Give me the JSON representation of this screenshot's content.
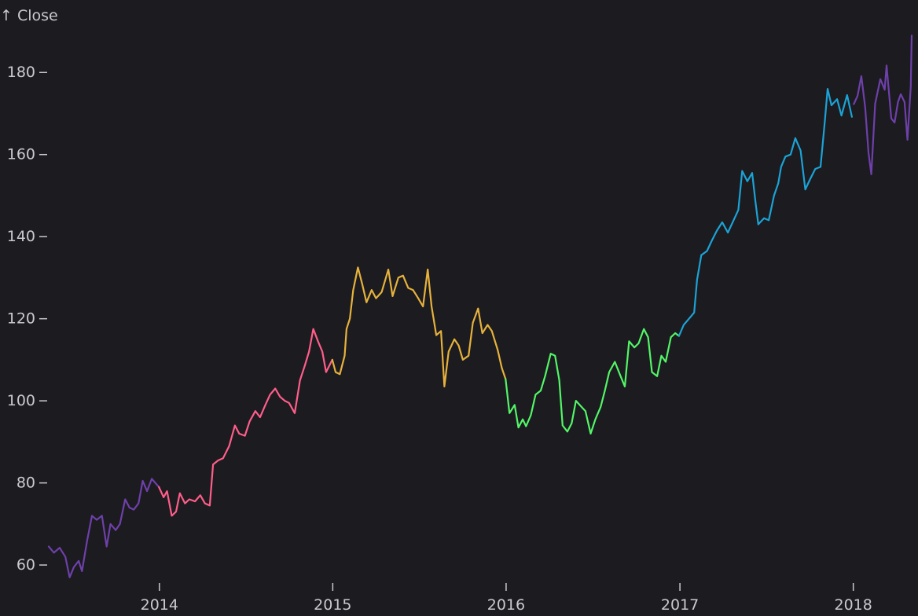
{
  "chart_data": {
    "type": "line",
    "y_axis_label": "↑ Close",
    "ylim": [
      56,
      190
    ],
    "xlim": [
      "2013-05-13",
      "2018-05-04"
    ],
    "y_ticks": [
      60,
      80,
      100,
      120,
      140,
      160,
      180
    ],
    "y_tick_labels": [
      "60",
      "80",
      "100",
      "120",
      "140",
      "160",
      "180"
    ],
    "x_ticks": [
      "2014-01-01",
      "2015-01-01",
      "2016-01-01",
      "2017-01-01",
      "2018-01-01"
    ],
    "x_tick_labels": [
      "2014",
      "2015",
      "2016",
      "2017",
      "2018"
    ],
    "grid": false,
    "background": "#1c1b20",
    "series": [
      {
        "color": "#6e40aa",
        "points": [
          [
            "2013-05-13",
            64.5
          ],
          [
            "2013-05-24",
            63.0
          ],
          [
            "2013-06-05",
            64.2
          ],
          [
            "2013-06-17",
            62.0
          ],
          [
            "2013-06-26",
            57.0
          ],
          [
            "2013-07-05",
            59.5
          ],
          [
            "2013-07-15",
            61.0
          ],
          [
            "2013-07-22",
            58.5
          ],
          [
            "2013-08-02",
            66.0
          ],
          [
            "2013-08-12",
            72.0
          ],
          [
            "2013-08-22",
            71.0
          ],
          [
            "2013-09-02",
            72.0
          ],
          [
            "2013-09-12",
            64.5
          ],
          [
            "2013-09-20",
            70.0
          ],
          [
            "2013-10-01",
            68.5
          ],
          [
            "2013-10-10",
            70.0
          ],
          [
            "2013-10-21",
            76.0
          ],
          [
            "2013-10-30",
            74.0
          ],
          [
            "2013-11-08",
            73.5
          ],
          [
            "2013-11-18",
            75.0
          ],
          [
            "2013-11-27",
            80.5
          ],
          [
            "2013-12-06",
            78.0
          ],
          [
            "2013-12-16",
            81.0
          ],
          [
            "2013-12-31",
            79.0
          ]
        ]
      },
      {
        "color": "#ff5e8a",
        "points": [
          [
            "2013-12-31",
            79.0
          ],
          [
            "2014-01-10",
            76.5
          ],
          [
            "2014-01-17",
            78.0
          ],
          [
            "2014-01-27",
            72.0
          ],
          [
            "2014-02-05",
            73.0
          ],
          [
            "2014-02-13",
            77.5
          ],
          [
            "2014-02-24",
            75.0
          ],
          [
            "2014-03-05",
            76.0
          ],
          [
            "2014-03-17",
            75.5
          ],
          [
            "2014-03-28",
            77.0
          ],
          [
            "2014-04-07",
            75.0
          ],
          [
            "2014-04-17",
            74.5
          ],
          [
            "2014-04-24",
            84.5
          ],
          [
            "2014-05-05",
            85.5
          ],
          [
            "2014-05-15",
            86.0
          ],
          [
            "2014-05-28",
            89.0
          ],
          [
            "2014-06-09",
            94.0
          ],
          [
            "2014-06-18",
            92.0
          ],
          [
            "2014-06-30",
            91.5
          ],
          [
            "2014-07-10",
            95.0
          ],
          [
            "2014-07-22",
            97.5
          ],
          [
            "2014-08-01",
            96.0
          ],
          [
            "2014-08-12",
            99.0
          ],
          [
            "2014-08-22",
            101.5
          ],
          [
            "2014-09-02",
            103.0
          ],
          [
            "2014-09-12",
            101.0
          ],
          [
            "2014-09-22",
            100.0
          ],
          [
            "2014-10-01",
            99.5
          ],
          [
            "2014-10-13",
            97.0
          ],
          [
            "2014-10-24",
            105.0
          ],
          [
            "2014-11-03",
            108.5
          ],
          [
            "2014-11-12",
            112.0
          ],
          [
            "2014-11-21",
            117.5
          ],
          [
            "2014-12-01",
            114.5
          ],
          [
            "2014-12-10",
            112.0
          ],
          [
            "2014-12-18",
            107.0
          ],
          [
            "2014-12-31",
            110.0
          ]
        ]
      },
      {
        "color": "#e6b23c",
        "points": [
          [
            "2014-12-31",
            110.0
          ],
          [
            "2015-01-07",
            107.0
          ],
          [
            "2015-01-16",
            106.5
          ],
          [
            "2015-01-26",
            111.0
          ],
          [
            "2015-01-30",
            117.5
          ],
          [
            "2015-02-06",
            120.0
          ],
          [
            "2015-02-13",
            127.0
          ],
          [
            "2015-02-23",
            132.5
          ],
          [
            "2015-03-04",
            128.5
          ],
          [
            "2015-03-13",
            124.0
          ],
          [
            "2015-03-24",
            127.0
          ],
          [
            "2015-04-02",
            125.0
          ],
          [
            "2015-04-14",
            126.5
          ],
          [
            "2015-04-28",
            132.0
          ],
          [
            "2015-05-07",
            125.5
          ],
          [
            "2015-05-19",
            130.0
          ],
          [
            "2015-05-29",
            130.5
          ],
          [
            "2015-06-09",
            127.5
          ],
          [
            "2015-06-19",
            127.0
          ],
          [
            "2015-06-30",
            125.0
          ],
          [
            "2015-07-10",
            123.0
          ],
          [
            "2015-07-20",
            132.0
          ],
          [
            "2015-07-28",
            123.0
          ],
          [
            "2015-08-07",
            116.0
          ],
          [
            "2015-08-17",
            117.0
          ],
          [
            "2015-08-24",
            103.5
          ],
          [
            "2015-09-02",
            112.0
          ],
          [
            "2015-09-14",
            115.0
          ],
          [
            "2015-09-23",
            113.5
          ],
          [
            "2015-10-02",
            110.0
          ],
          [
            "2015-10-14",
            111.0
          ],
          [
            "2015-10-23",
            119.0
          ],
          [
            "2015-11-03",
            122.5
          ],
          [
            "2015-11-12",
            116.5
          ],
          [
            "2015-11-23",
            118.5
          ],
          [
            "2015-12-02",
            117.0
          ],
          [
            "2015-12-14",
            112.5
          ],
          [
            "2015-12-23",
            108.0
          ],
          [
            "2015-12-31",
            105.3
          ]
        ]
      },
      {
        "color": "#52f667",
        "points": [
          [
            "2015-12-31",
            105.3
          ],
          [
            "2016-01-08",
            97.0
          ],
          [
            "2016-01-19",
            99.0
          ],
          [
            "2016-01-27",
            93.5
          ],
          [
            "2016-02-05",
            95.5
          ],
          [
            "2016-02-12",
            93.8
          ],
          [
            "2016-02-22",
            96.5
          ],
          [
            "2016-03-03",
            101.5
          ],
          [
            "2016-03-14",
            102.5
          ],
          [
            "2016-03-23",
            106.0
          ],
          [
            "2016-04-04",
            111.5
          ],
          [
            "2016-04-13",
            111.0
          ],
          [
            "2016-04-22",
            105.0
          ],
          [
            "2016-04-29",
            94.0
          ],
          [
            "2016-05-09",
            92.5
          ],
          [
            "2016-05-18",
            94.5
          ],
          [
            "2016-05-27",
            100.0
          ],
          [
            "2016-06-08",
            98.5
          ],
          [
            "2016-06-16",
            97.5
          ],
          [
            "2016-06-27",
            92.0
          ],
          [
            "2016-07-07",
            95.5
          ],
          [
            "2016-07-18",
            98.5
          ],
          [
            "2016-07-27",
            102.5
          ],
          [
            "2016-08-05",
            107.0
          ],
          [
            "2016-08-17",
            109.5
          ],
          [
            "2016-08-29",
            106.0
          ],
          [
            "2016-09-07",
            103.5
          ],
          [
            "2016-09-16",
            114.5
          ],
          [
            "2016-09-27",
            113.0
          ],
          [
            "2016-10-06",
            114.0
          ],
          [
            "2016-10-17",
            117.5
          ],
          [
            "2016-10-26",
            115.5
          ],
          [
            "2016-11-03",
            107.0
          ],
          [
            "2016-11-14",
            106.0
          ],
          [
            "2016-11-23",
            111.0
          ],
          [
            "2016-12-02",
            109.5
          ],
          [
            "2016-12-13",
            115.5
          ],
          [
            "2016-12-22",
            116.5
          ],
          [
            "2016-12-30",
            115.8
          ]
        ]
      },
      {
        "color": "#1ba3d6",
        "points": [
          [
            "2016-12-30",
            115.8
          ],
          [
            "2017-01-09",
            118.5
          ],
          [
            "2017-01-20",
            120.0
          ],
          [
            "2017-01-31",
            121.5
          ],
          [
            "2017-02-06",
            129.5
          ],
          [
            "2017-02-15",
            135.5
          ],
          [
            "2017-02-27",
            136.5
          ],
          [
            "2017-03-09",
            139.0
          ],
          [
            "2017-03-20",
            141.5
          ],
          [
            "2017-03-31",
            143.5
          ],
          [
            "2017-04-12",
            141.0
          ],
          [
            "2017-04-24",
            144.0
          ],
          [
            "2017-05-04",
            146.5
          ],
          [
            "2017-05-12",
            156.0
          ],
          [
            "2017-05-23",
            153.5
          ],
          [
            "2017-06-02",
            155.5
          ],
          [
            "2017-06-09",
            148.5
          ],
          [
            "2017-06-15",
            143.0
          ],
          [
            "2017-06-27",
            144.5
          ],
          [
            "2017-07-07",
            144.0
          ],
          [
            "2017-07-18",
            150.0
          ],
          [
            "2017-07-27",
            153.0
          ],
          [
            "2017-08-02",
            157.0
          ],
          [
            "2017-08-11",
            159.5
          ],
          [
            "2017-08-22",
            160.0
          ],
          [
            "2017-09-01",
            164.0
          ],
          [
            "2017-09-12",
            161.0
          ],
          [
            "2017-09-22",
            151.5
          ],
          [
            "2017-10-02",
            154.0
          ],
          [
            "2017-10-13",
            156.5
          ],
          [
            "2017-10-24",
            157.0
          ],
          [
            "2017-11-02",
            168.0
          ],
          [
            "2017-11-08",
            176.0
          ],
          [
            "2017-11-16",
            172.0
          ],
          [
            "2017-11-28",
            173.5
          ],
          [
            "2017-12-07",
            169.5
          ],
          [
            "2017-12-19",
            174.5
          ],
          [
            "2017-12-29",
            169.2
          ]
        ]
      },
      {
        "color": "#6e40aa",
        "points": [
          [
            "2018-01-02",
            172.3
          ],
          [
            "2018-01-10",
            174.3
          ],
          [
            "2018-01-18",
            179.1
          ],
          [
            "2018-01-26",
            171.5
          ],
          [
            "2018-02-02",
            160.5
          ],
          [
            "2018-02-08",
            155.2
          ],
          [
            "2018-02-16",
            172.4
          ],
          [
            "2018-02-27",
            178.4
          ],
          [
            "2018-03-08",
            175.8
          ],
          [
            "2018-03-12",
            181.7
          ],
          [
            "2018-03-22",
            168.8
          ],
          [
            "2018-03-29",
            167.8
          ],
          [
            "2018-04-05",
            172.8
          ],
          [
            "2018-04-11",
            174.7
          ],
          [
            "2018-04-19",
            172.8
          ],
          [
            "2018-04-25",
            163.6
          ],
          [
            "2018-05-02",
            176.6
          ],
          [
            "2018-05-04",
            189.0
          ]
        ]
      }
    ]
  }
}
